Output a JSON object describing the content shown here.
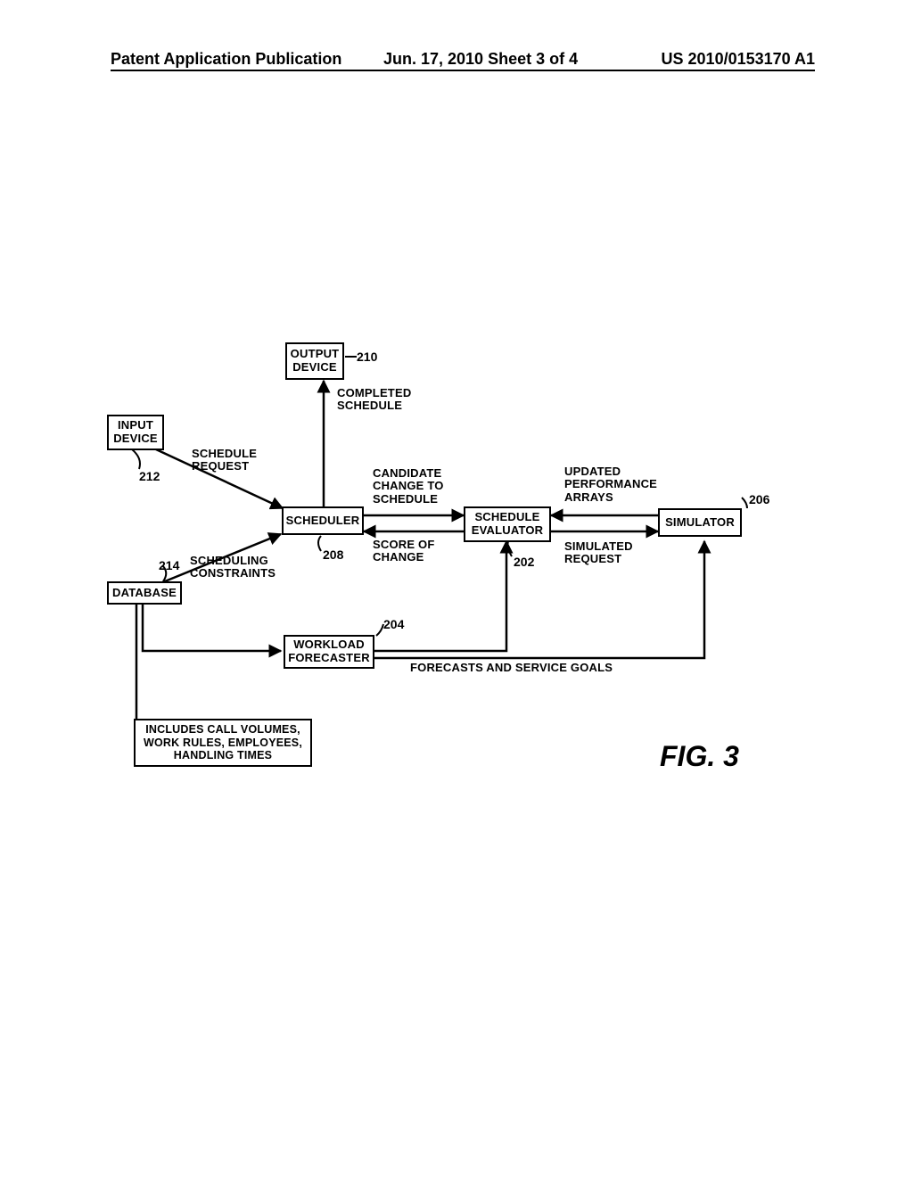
{
  "header": {
    "left": "Patent Application Publication",
    "center": "Jun. 17, 2010  Sheet 3 of 4",
    "right": "US 2010/0153170 A1"
  },
  "boxes": {
    "output_device": "OUTPUT\nDEVICE",
    "input_device": "INPUT\nDEVICE",
    "scheduler": "SCHEDULER",
    "schedule_evaluator": "SCHEDULE\nEVALUATOR",
    "simulator": "SIMULATOR",
    "database": "DATABASE",
    "workload_forecaster": "WORKLOAD\nFORECASTER",
    "db_note": "INCLUDES CALL VOLUMES,\nWORK RULES, EMPLOYEES,\nHANDLING TIMES"
  },
  "labels": {
    "completed_schedule": "COMPLETED\nSCHEDULE",
    "schedule_request": "SCHEDULE\nREQUEST",
    "candidate_change": "CANDIDATE\nCHANGE TO\nSCHEDULE",
    "score_of_change": "SCORE OF\nCHANGE",
    "updated_arrays": "UPDATED\nPERFORMANCE\nARRAYS",
    "simulated_request": "SIMULATED\nREQUEST",
    "scheduling_constraints": "SCHEDULING\nCONSTRAINTS",
    "forecasts_goals": "FORECASTS AND SERVICE GOALS"
  },
  "refs": {
    "r210": "210",
    "r212": "212",
    "r208": "208",
    "r202": "202",
    "r206": "206",
    "r214": "214",
    "r204": "204"
  },
  "figure_label": "FIG. 3",
  "style": {
    "stroke": "#000000",
    "stroke_width": 2.5,
    "arrow_size": 10,
    "background": "#ffffff"
  }
}
